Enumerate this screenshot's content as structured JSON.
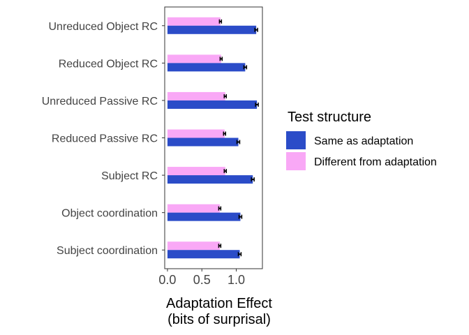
{
  "chart_data": {
    "type": "bar",
    "orientation": "horizontal",
    "categories": [
      "Unreduced Object RC",
      "Reduced Object RC",
      "Unreduced Passive RC",
      "Reduced Passive RC",
      "Subject RC",
      "Object coordination",
      "Subject coordination"
    ],
    "series": [
      {
        "name": "Same as adaptation",
        "color": "#2b4cc8",
        "values": [
          1.29,
          1.13,
          1.3,
          1.03,
          1.24,
          1.06,
          1.05
        ],
        "errors": [
          0.02,
          0.02,
          0.02,
          0.02,
          0.02,
          0.02,
          0.02
        ]
      },
      {
        "name": "Different from adaptation",
        "color": "#f9a8f6",
        "values": [
          0.77,
          0.78,
          0.84,
          0.83,
          0.84,
          0.76,
          0.76
        ],
        "errors": [
          0.015,
          0.015,
          0.015,
          0.015,
          0.015,
          0.015,
          0.015
        ]
      }
    ],
    "xlabel": [
      "Adaptation Effect",
      "(bits of surprisal)"
    ],
    "ylabel": "",
    "xlim": [
      -0.04,
      1.38
    ],
    "xticks": [
      0.0,
      0.5,
      1.0
    ],
    "xtick_labels": [
      "0.0",
      "0.5",
      "1.0"
    ],
    "grid": false,
    "legend": {
      "title": "Test structure",
      "placement": "right"
    }
  }
}
